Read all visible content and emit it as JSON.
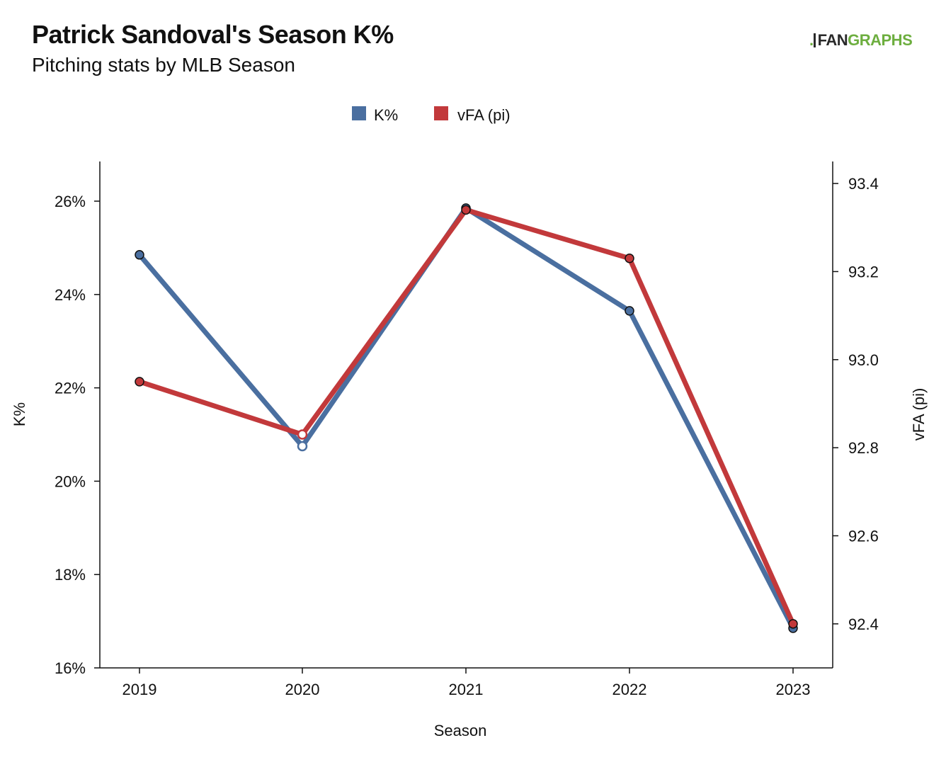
{
  "header": {
    "title": "Patrick Sandoval's Season K%",
    "subtitle": "Pitching stats by MLB Season"
  },
  "logo": {
    "prefix": ".",
    "fan": "FAN",
    "graphs": "GRAPHS"
  },
  "colors": {
    "k_pct": "#4a6fa0",
    "vfa": "#c2393b",
    "axis": "#111111"
  },
  "chart_data": {
    "type": "line",
    "x": [
      "2019",
      "2020",
      "2021",
      "2022",
      "2023"
    ],
    "xlabel": "Season",
    "y_left": {
      "label": "K%",
      "ticks": [
        16,
        18,
        20,
        22,
        24,
        26
      ],
      "tick_labels": [
        "16%",
        "18%",
        "20%",
        "22%",
        "24%",
        "26%"
      ],
      "range": [
        16,
        26.85
      ]
    },
    "y_right": {
      "label": "vFA (pi)",
      "ticks": [
        92.4,
        92.6,
        92.8,
        93.0,
        93.2,
        93.4
      ],
      "tick_labels": [
        "92.4",
        "92.6",
        "92.8",
        "93.0",
        "93.2",
        "93.4"
      ],
      "range": [
        92.3,
        93.45
      ]
    },
    "legend": {
      "position": "top-center"
    },
    "grid": false,
    "series": [
      {
        "name": "K%",
        "axis": "left",
        "values": [
          24.85,
          20.75,
          25.85,
          23.65,
          16.85
        ],
        "open_points": [
          1
        ]
      },
      {
        "name": "vFA (pi)",
        "axis": "right",
        "values": [
          92.95,
          92.83,
          93.34,
          93.23,
          92.4
        ],
        "open_points": [
          1
        ]
      }
    ]
  }
}
